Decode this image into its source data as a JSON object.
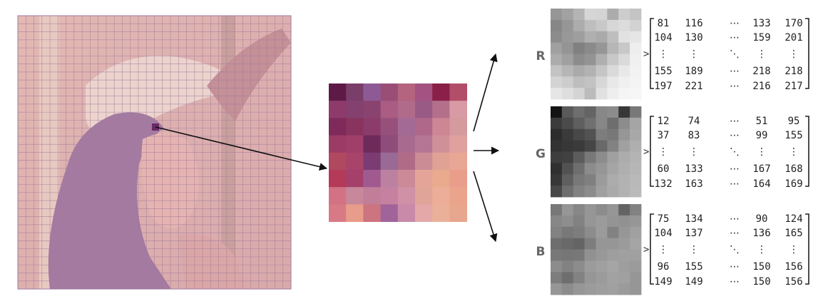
{
  "image_grid": {
    "cols": 34,
    "rows": 34,
    "grid_color": "#a07aa0"
  },
  "zoom_patch": {
    "rows": 8,
    "cols": 8,
    "colors": [
      [
        "#5e1a46",
        "#7a3e6a",
        "#8e5a96",
        "#9a4e76",
        "#b4647e",
        "#a45282",
        "#8a2048",
        "#b24e6a"
      ],
      [
        "#8e3a6a",
        "#84406e",
        "#8a426e",
        "#aa5c82",
        "#b06a8a",
        "#9a5a86",
        "#b4708a",
        "#d89aa4"
      ],
      [
        "#7e2a5a",
        "#88345e",
        "#8c3c6a",
        "#96507a",
        "#a46a96",
        "#b0688a",
        "#cc8694",
        "#d49a9e"
      ],
      [
        "#9a3c66",
        "#a0406a",
        "#6e2a5a",
        "#8e4c7a",
        "#a86a8e",
        "#b47694",
        "#d09098",
        "#e0a09e"
      ],
      [
        "#b04860",
        "#a8446a",
        "#7a3c72",
        "#9a6a96",
        "#b06c86",
        "#cc8c96",
        "#e0a294",
        "#e8a694"
      ],
      [
        "#b43a5a",
        "#a4406a",
        "#a05a90",
        "#bc80a0",
        "#cc8a98",
        "#e4a498",
        "#eaaa8e",
        "#e89e8a"
      ],
      [
        "#d27284",
        "#c6889a",
        "#c07e98",
        "#c680a0",
        "#d090a6",
        "#e0a498",
        "#ecae98",
        "#eaa48c"
      ],
      [
        "#d87a86",
        "#e89c8a",
        "#cc7480",
        "#a0649a",
        "#c88aa8",
        "#e4a8a8",
        "#ebb09a",
        "#e8a68e"
      ]
    ]
  },
  "channels": [
    {
      "label": "R",
      "thumb": [
        [
          150,
          162,
          180,
          214,
          212,
          172,
          205,
          196
        ],
        [
          135,
          150,
          172,
          190,
          200,
          215,
          220,
          210
        ],
        [
          140,
          152,
          158,
          175,
          170,
          190,
          226,
          230
        ],
        [
          160,
          148,
          128,
          138,
          150,
          182,
          200,
          238
        ],
        [
          172,
          160,
          140,
          148,
          175,
          200,
          218,
          240
        ],
        [
          195,
          182,
          170,
          178,
          198,
          218,
          232,
          242
        ],
        [
          212,
          205,
          190,
          195,
          215,
          232,
          240,
          244
        ],
        [
          230,
          222,
          212,
          188,
          225,
          238,
          245,
          246
        ]
      ],
      "matrix": [
        [
          "81",
          "116",
          "⋯",
          "133",
          "170"
        ],
        [
          "104",
          "130",
          "⋯",
          "159",
          "201"
        ],
        [
          "⋮",
          "⋮",
          "⋱",
          "⋮",
          "⋮"
        ],
        [
          "155",
          "189",
          "⋯",
          "218",
          "218"
        ],
        [
          "197",
          "221",
          "⋯",
          "216",
          "217"
        ]
      ]
    },
    {
      "label": "G",
      "thumb": [
        [
          20,
          90,
          110,
          100,
          135,
          140,
          55,
          120
        ],
        [
          60,
          75,
          95,
          112,
          135,
          110,
          140,
          165
        ],
        [
          45,
          58,
          72,
          82,
          125,
          120,
          150,
          168
        ],
        [
          50,
          55,
          58,
          70,
          105,
          130,
          160,
          175
        ],
        [
          62,
          65,
          92,
          120,
          140,
          160,
          172,
          180
        ],
        [
          48,
          82,
          110,
          140,
          150,
          165,
          175,
          182
        ],
        [
          55,
          95,
          120,
          128,
          155,
          172,
          178,
          185
        ],
        [
          72,
          110,
          130,
          140,
          160,
          170,
          178,
          186
        ]
      ],
      "matrix": [
        [
          "12",
          "74",
          "⋯",
          "51",
          "95"
        ],
        [
          "37",
          "83",
          "⋯",
          "99",
          "155"
        ],
        [
          "⋮",
          "⋮",
          "⋱",
          "⋮",
          "⋮"
        ],
        [
          "60",
          "133",
          "⋯",
          "167",
          "168"
        ],
        [
          "132",
          "163",
          "⋯",
          "164",
          "169"
        ]
      ]
    },
    {
      "label": "B",
      "thumb": [
        [
          120,
          150,
          135,
          150,
          140,
          150,
          100,
          130
        ],
        [
          135,
          142,
          130,
          150,
          155,
          148,
          145,
          150
        ],
        [
          130,
          120,
          125,
          140,
          155,
          130,
          150,
          160
        ],
        [
          110,
          105,
          100,
          125,
          150,
          150,
          155,
          165
        ],
        [
          120,
          118,
          120,
          145,
          152,
          158,
          160,
          160
        ],
        [
          140,
          130,
          140,
          155,
          160,
          165,
          158,
          155
        ],
        [
          125,
          110,
          130,
          150,
          155,
          162,
          160,
          150
        ],
        [
          150,
          140,
          150,
          155,
          158,
          160,
          155,
          150
        ]
      ],
      "matrix": [
        [
          "75",
          "134",
          "⋯",
          "90",
          "124"
        ],
        [
          "104",
          "137",
          "⋯",
          "136",
          "165"
        ],
        [
          "⋮",
          "⋮",
          "⋱",
          "⋮",
          "⋮"
        ],
        [
          "96",
          "155",
          "⋯",
          "150",
          "156"
        ],
        [
          "149",
          "149",
          "⋯",
          "150",
          "156"
        ]
      ]
    }
  ],
  "pointer_symbol": ">",
  "colors": {
    "arrow": "#111111",
    "bracket": "#222222",
    "label": "#666666"
  }
}
